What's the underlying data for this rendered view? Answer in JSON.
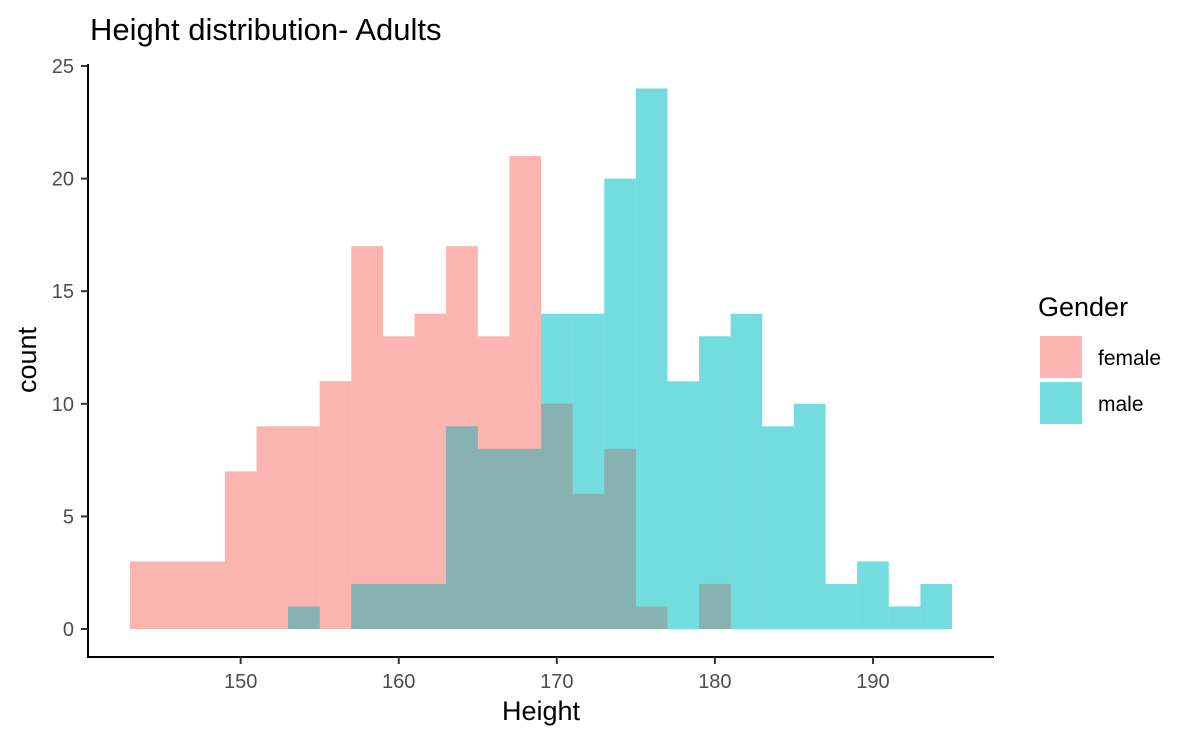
{
  "chart_data": {
    "type": "histogram",
    "title": "Height distribution- Adults",
    "xlabel": "Height",
    "ylabel": "count",
    "xlim": [
      143,
      195
    ],
    "ylim": [
      0,
      25
    ],
    "x_ticks": [
      150,
      160,
      170,
      180,
      190
    ],
    "y_ticks": [
      0,
      5,
      10,
      15,
      20,
      25
    ],
    "bin_width": 2,
    "bin_starts": [
      143,
      145,
      147,
      149,
      151,
      153,
      155,
      157,
      159,
      161,
      163,
      165,
      167,
      169,
      171,
      173,
      175,
      177,
      179,
      181,
      183,
      185,
      187,
      189,
      191,
      193
    ],
    "legend": {
      "title": "Gender",
      "position": "right"
    },
    "grid": false,
    "overlap_color": "#88b2b1",
    "series": [
      {
        "name": "female",
        "color": "#F8766D",
        "values": [
          3,
          3,
          3,
          7,
          9,
          9,
          11,
          17,
          13,
          14,
          17,
          13,
          21,
          10,
          6,
          8,
          1,
          0,
          2,
          0,
          0,
          0,
          0,
          0,
          0,
          0
        ]
      },
      {
        "name": "male",
        "color": "#00BFC4",
        "values": [
          0,
          0,
          0,
          0,
          0,
          1,
          0,
          2,
          2,
          2,
          9,
          8,
          8,
          14,
          14,
          20,
          24,
          11,
          13,
          14,
          9,
          10,
          2,
          3,
          1,
          2
        ]
      }
    ]
  }
}
